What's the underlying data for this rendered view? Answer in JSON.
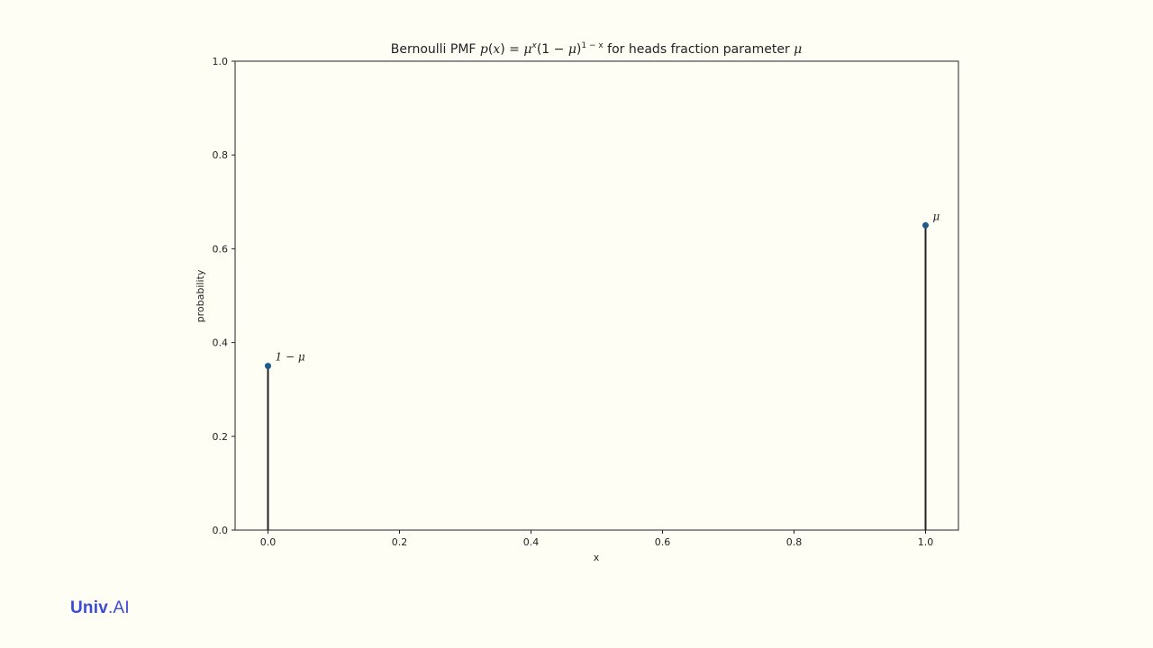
{
  "chart_data": {
    "type": "stem",
    "title": {
      "prefix": "Bernoulli PMF ",
      "formula_p": "p",
      "formula_open": "(",
      "formula_x": "x",
      "formula_close": ")",
      "formula_eq": " = ",
      "formula_mu": "μ",
      "formula_sup_x": "x",
      "formula_rest": "(1 − ",
      "formula_mu2": "μ",
      "formula_rparen": ")",
      "formula_sup": "1 − x",
      "suffix": " for heads fraction parameter ",
      "suffix_mu": "μ"
    },
    "xlabel": "x",
    "ylabel": "probability",
    "xlim": [
      -0.05,
      1.05
    ],
    "ylim": [
      0.0,
      1.0
    ],
    "xticks": [
      0.0,
      0.2,
      0.4,
      0.6,
      0.8,
      1.0
    ],
    "xtick_labels": [
      "0.0",
      "0.2",
      "0.4",
      "0.6",
      "0.8",
      "1.0"
    ],
    "yticks": [
      0.0,
      0.2,
      0.4,
      0.6,
      0.8,
      1.0
    ],
    "ytick_labels": [
      "0.0",
      "0.2",
      "0.4",
      "0.6",
      "0.8",
      "1.0"
    ],
    "points": [
      {
        "x": 0.0,
        "y": 0.35,
        "annotation": "1 − μ"
      },
      {
        "x": 1.0,
        "y": 0.65,
        "annotation": "μ"
      }
    ],
    "colors": {
      "marker": "#1f5a8a",
      "stem": "#222222",
      "axes": "#222222",
      "background": "#fffef5"
    }
  },
  "branding": {
    "logo_bold": "Univ",
    "logo_rest": ".AI"
  }
}
